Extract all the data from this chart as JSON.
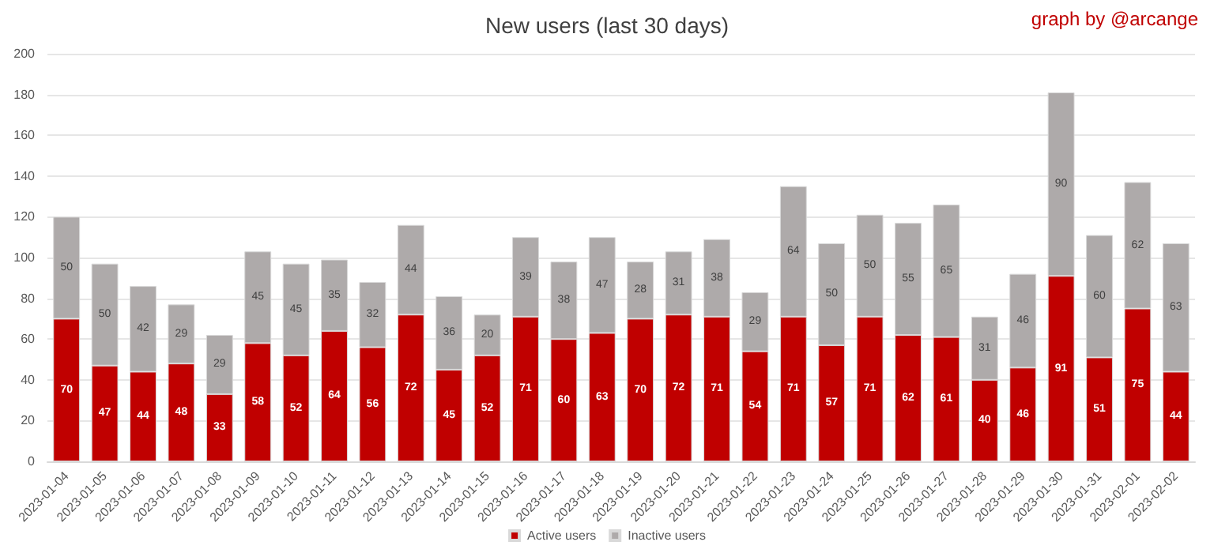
{
  "chart_data": {
    "type": "bar",
    "title": "New users (last 30 days)",
    "annotations": [
      "graph by @arcange"
    ],
    "categories": [
      "2023-01-04",
      "2023-01-05",
      "2023-01-06",
      "2023-01-07",
      "2023-01-08",
      "2023-01-09",
      "2023-01-10",
      "2023-01-11",
      "2023-01-12",
      "2023-01-13",
      "2023-01-14",
      "2023-01-15",
      "2023-01-16",
      "2023-01-17",
      "2023-01-18",
      "2023-01-19",
      "2023-01-20",
      "2023-01-21",
      "2023-01-22",
      "2023-01-23",
      "2023-01-24",
      "2023-01-25",
      "2023-01-26",
      "2023-01-27",
      "2023-01-28",
      "2023-01-29",
      "2023-01-30",
      "2023-01-31",
      "2023-02-01",
      "2023-02-02"
    ],
    "series": [
      {
        "name": "Active users",
        "color": "#c00000",
        "values": [
          70,
          47,
          44,
          48,
          33,
          58,
          52,
          64,
          56,
          72,
          45,
          52,
          71,
          60,
          63,
          70,
          72,
          71,
          54,
          71,
          57,
          71,
          62,
          61,
          40,
          46,
          91,
          51,
          75,
          44
        ]
      },
      {
        "name": "Inactive users",
        "color": "#aeaaaa",
        "values": [
          50,
          50,
          42,
          29,
          29,
          45,
          45,
          35,
          32,
          44,
          36,
          20,
          39,
          38,
          47,
          28,
          31,
          38,
          29,
          64,
          50,
          50,
          55,
          65,
          31,
          46,
          90,
          60,
          62,
          63
        ]
      }
    ],
    "stacked": true,
    "data_labels": true,
    "ylim": [
      0,
      200
    ],
    "yticks": [
      0,
      20,
      40,
      60,
      80,
      100,
      120,
      140,
      160,
      180,
      200
    ],
    "grid": "y",
    "legend": "bottom"
  }
}
